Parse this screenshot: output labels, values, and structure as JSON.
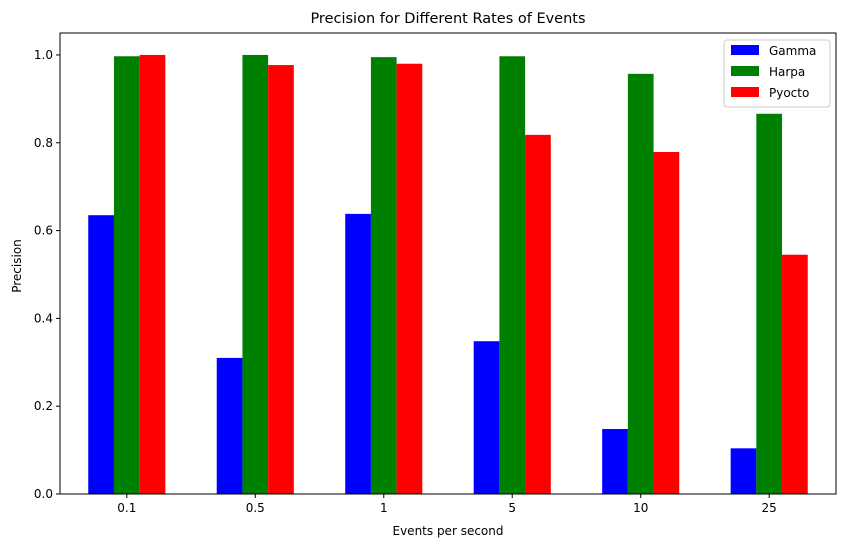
{
  "chart_data": {
    "type": "bar",
    "title": "Precision for Different Rates of Events",
    "xlabel": "Events per second",
    "ylabel": "Precision",
    "categories": [
      "0.1",
      "0.5",
      "1",
      "5",
      "10",
      "25"
    ],
    "series": [
      {
        "name": "Gamma",
        "color": "#0000ff",
        "values": [
          0.635,
          0.31,
          0.638,
          0.348,
          0.148,
          0.104
        ]
      },
      {
        "name": "Harpa",
        "color": "#008000",
        "values": [
          0.997,
          1.0,
          0.995,
          0.997,
          0.957,
          0.866
        ]
      },
      {
        "name": "Pyocto",
        "color": "#ff0000",
        "values": [
          1.0,
          0.977,
          0.98,
          0.818,
          0.779,
          0.545
        ]
      }
    ],
    "ylim": [
      0,
      1.05
    ],
    "yticks": [
      "0.0",
      "0.2",
      "0.4",
      "0.6",
      "0.8",
      "1.0"
    ],
    "ytick_values": [
      0.0,
      0.2,
      0.4,
      0.6,
      0.8,
      1.0
    ],
    "grid": false,
    "legend_position": "top-right"
  }
}
